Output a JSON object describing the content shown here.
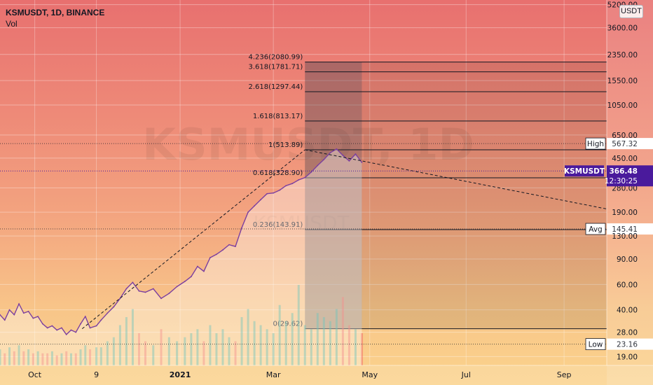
{
  "header": {
    "symbol_line": "KSMUSDT, 1D, BINANCE",
    "vol_label": "Vol"
  },
  "watermark": {
    "symbol": "KSMUSDT, 1D",
    "subtitle": "KSMUSDT"
  },
  "currency_button": "USDT",
  "colors": {
    "price_line": "#7b3fa0",
    "symbol_badge": "#4a1a9c",
    "grid": "#ffffff",
    "fib_line": "#131722"
  },
  "chart_data": {
    "type": "line",
    "title": "KSMUSDT, 1D, BINANCE",
    "y_scale": "log",
    "ylim": [
      16.5,
      5600
    ],
    "x_range": [
      "2020-09-09",
      "2021-09-28"
    ],
    "y_ticks": [
      5200.0,
      3600.0,
      2350.0,
      1550.0,
      1050.0,
      650.0,
      450.0,
      280.0,
      190.0,
      130.0,
      90.0,
      60.0,
      40.0,
      28.0,
      19.0
    ],
    "y_tick_labels": [
      "5200.00",
      "3600.00",
      "2350.00",
      "1550.00",
      "1050.00",
      "650.00",
      "450.00",
      "280.00",
      "190.00",
      "130.00",
      "90.00",
      "60.00",
      "40.00",
      "28.00",
      "19.00"
    ],
    "x_ticks": [
      {
        "label": "Oct",
        "date": "2020-10-01"
      },
      {
        "label": "9",
        "date": "2020-11-09"
      },
      {
        "label": "2021",
        "date": "2021-01-01"
      },
      {
        "label": "Mar",
        "date": "2021-03-01"
      },
      {
        "label": "May",
        "date": "2021-05-01"
      },
      {
        "label": "Jul",
        "date": "2021-07-01"
      },
      {
        "label": "Sep",
        "date": "2021-09-01"
      }
    ],
    "price_series": {
      "dates": [
        "2020-09-09",
        "2020-09-12",
        "2020-09-15",
        "2020-09-18",
        "2020-09-21",
        "2020-09-24",
        "2020-09-27",
        "2020-09-30",
        "2020-10-03",
        "2020-10-06",
        "2020-10-09",
        "2020-10-12",
        "2020-10-15",
        "2020-10-18",
        "2020-10-21",
        "2020-10-24",
        "2020-10-27",
        "2020-10-30",
        "2020-11-02",
        "2020-11-05",
        "2020-11-09",
        "2020-11-12",
        "2020-11-16",
        "2020-11-20",
        "2020-11-24",
        "2020-11-28",
        "2020-12-02",
        "2020-12-06",
        "2020-12-10",
        "2020-12-15",
        "2020-12-20",
        "2020-12-25",
        "2020-12-30",
        "2021-01-04",
        "2021-01-08",
        "2021-01-12",
        "2021-01-16",
        "2021-01-20",
        "2021-01-24",
        "2021-01-28",
        "2021-02-01",
        "2021-02-05",
        "2021-02-09",
        "2021-02-13",
        "2021-02-17",
        "2021-02-21",
        "2021-02-25",
        "2021-03-01",
        "2021-03-05",
        "2021-03-09",
        "2021-03-13",
        "2021-03-17",
        "2021-03-21",
        "2021-03-25",
        "2021-03-29",
        "2021-04-02",
        "2021-04-06",
        "2021-04-10",
        "2021-04-14",
        "2021-04-18",
        "2021-04-22",
        "2021-04-26"
      ],
      "values": [
        37,
        34,
        40,
        37,
        44,
        38,
        39,
        35,
        36,
        32,
        30,
        31,
        29,
        30,
        27,
        29,
        28,
        32,
        36,
        30,
        31,
        34,
        38,
        42,
        48,
        56,
        62,
        54,
        53,
        56,
        48,
        52,
        58,
        63,
        68,
        80,
        74,
        92,
        97,
        104,
        113,
        110,
        148,
        190,
        210,
        232,
        255,
        258,
        270,
        290,
        300,
        318,
        330,
        360,
        400,
        440,
        490,
        520,
        470,
        430,
        480,
        420
      ]
    },
    "volume_series": {
      "note_dates_match_price": true,
      "values": [
        8,
        6,
        9,
        7,
        10,
        7,
        8,
        6,
        7,
        6,
        6,
        7,
        5,
        6,
        7,
        6,
        6,
        8,
        10,
        8,
        9,
        9,
        12,
        14,
        20,
        24,
        28,
        16,
        12,
        10,
        18,
        14,
        12,
        14,
        16,
        18,
        12,
        20,
        16,
        18,
        14,
        12,
        24,
        28,
        22,
        20,
        18,
        16,
        30,
        22,
        26,
        40,
        20,
        18,
        26,
        24,
        22,
        28,
        34,
        20,
        18,
        16
      ]
    },
    "trend_lines": [
      {
        "from": {
          "date": "2020-10-31",
          "value": 29.62
        },
        "to": {
          "date": "2021-03-21",
          "value": 513.89
        }
      },
      {
        "from": {
          "date": "2021-03-21",
          "value": 513.89
        },
        "to": {
          "date": "2021-09-28",
          "value": 200
        }
      }
    ],
    "fib_levels": [
      {
        "ratio": "0",
        "value": 29.62,
        "label": "0(29.62)"
      },
      {
        "ratio": "0.236",
        "value": 143.91,
        "label": "0.236(143.91)"
      },
      {
        "ratio": "0.618",
        "value": 328.9,
        "label": "0.618(328.90)"
      },
      {
        "ratio": "1",
        "value": 513.89,
        "label": "1(513.89)"
      },
      {
        "ratio": "1.618",
        "value": 813.17,
        "label": "1.618(813.17)"
      },
      {
        "ratio": "2.618",
        "value": 1297.44,
        "label": "2.618(1297.44)"
      },
      {
        "ratio": "3.618",
        "value": 1781.71,
        "label": "3.618(1781.71)"
      },
      {
        "ratio": "4.236",
        "value": 2080.99,
        "label": "4.236(2080.99)"
      }
    ],
    "fib_range_dates": [
      "2021-03-21",
      "2021-09-28"
    ],
    "shaded_until": "2021-04-26",
    "reference_lines": [
      {
        "name": "High",
        "value": 567.32,
        "label": "High",
        "value_text": "567.32"
      },
      {
        "name": "Avg",
        "value": 145.41,
        "label": "Avg",
        "value_text": "145.41"
      },
      {
        "name": "Low",
        "value": 23.16,
        "label": "Low",
        "value_text": "23.16"
      }
    ],
    "last_price": {
      "symbol": "KSMUSDT",
      "value": 366.48,
      "value_text": "366.48",
      "countdown": "12:30:25"
    }
  }
}
